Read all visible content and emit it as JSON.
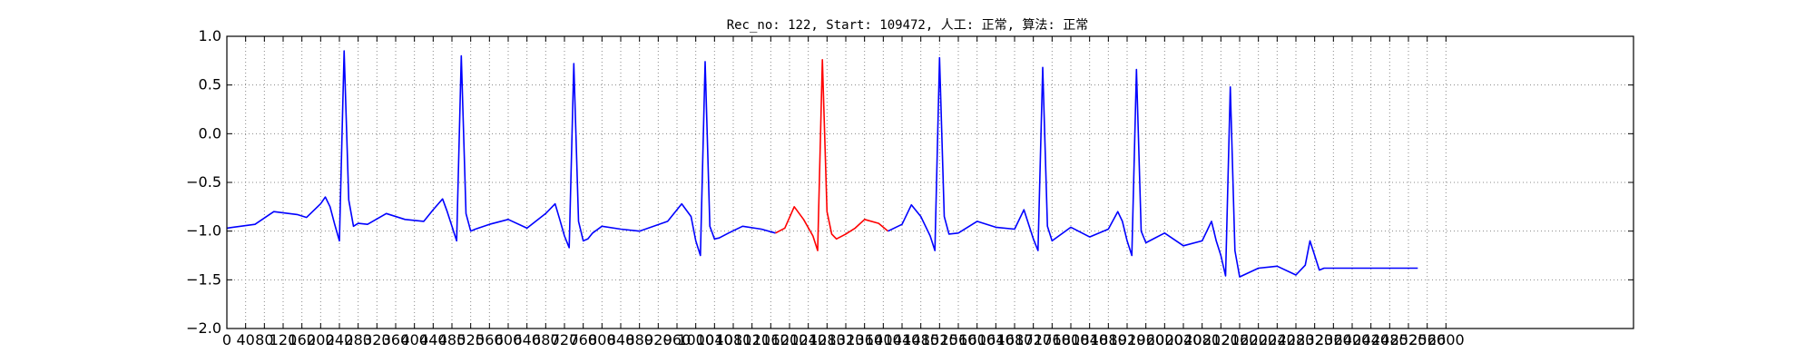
{
  "chart_data": {
    "type": "line",
    "title": "Rec_no: 122, Start: 109472, 人工: 正常, 算法: 正常",
    "xlabel": "",
    "ylabel": "",
    "xlim": [
      0,
      3000
    ],
    "ylim": [
      -2.0,
      1.0
    ],
    "grid": true,
    "grid_style": "dotted",
    "y_ticks": [
      1.0,
      0.5,
      0.0,
      -0.5,
      -1.0,
      -1.5,
      -2.0
    ],
    "y_tick_labels": [
      "1.0",
      "0.5",
      "0.0",
      "−0.5",
      "−1.0",
      "−1.5",
      "−2.0"
    ],
    "x_ticks": [
      0,
      40,
      80,
      120,
      160,
      200,
      240,
      280,
      320,
      360,
      400,
      440,
      480,
      520,
      560,
      600,
      640,
      680,
      720,
      760,
      800,
      840,
      880,
      920,
      960,
      1000,
      1040,
      1080,
      1120,
      1160,
      1200,
      1240,
      1280,
      1320,
      1360,
      1400,
      1440,
      1480,
      1520,
      1560,
      1600,
      1640,
      1680,
      1720,
      1760,
      1800,
      1840,
      1880,
      1920,
      1960,
      2000,
      2040,
      2080,
      2120,
      2160,
      2200,
      2240,
      2280,
      2320,
      2360,
      2400,
      2440,
      2480,
      2520,
      2560,
      2600
    ],
    "colors": {
      "signal": "#0000ff",
      "highlight": "#ff0000",
      "grid": "#888888"
    },
    "series": [
      {
        "color": "#0000ff",
        "x": [
          0,
          60,
          100,
          150,
          170,
          200,
          210,
          220,
          230,
          240,
          250,
          260,
          270,
          280,
          300,
          340,
          380,
          420,
          440,
          460,
          470,
          480,
          490,
          500,
          510,
          520,
          530,
          560,
          600,
          640,
          680,
          700,
          710,
          720,
          730,
          740,
          750,
          760,
          770,
          780,
          800,
          840,
          880,
          940,
          970,
          990,
          1000,
          1010,
          1020,
          1030,
          1040,
          1050,
          1070,
          1100,
          1140,
          1170
        ],
        "y": [
          -0.97,
          -0.93,
          -0.8,
          -0.83,
          -0.86,
          -0.72,
          -0.65,
          -0.75,
          -0.93,
          -1.1,
          0.85,
          -0.68,
          -0.95,
          -0.92,
          -0.93,
          -0.82,
          -0.88,
          -0.9,
          -0.78,
          -0.67,
          -0.8,
          -0.95,
          -1.1,
          0.8,
          -0.82,
          -1.0,
          -0.98,
          -0.93,
          -0.88,
          -0.97,
          -0.82,
          -0.72,
          -0.88,
          -1.05,
          -1.17,
          0.72,
          -0.9,
          -1.1,
          -1.08,
          -1.02,
          -0.95,
          -0.98,
          -1.0,
          -0.9,
          -0.72,
          -0.85,
          -1.1,
          -1.25,
          0.74,
          -0.95,
          -1.08,
          -1.07,
          -1.02,
          -0.95,
          -0.98,
          -1.02
        ]
      },
      {
        "color": "#ff0000",
        "x": [
          1170,
          1190,
          1210,
          1230,
          1250,
          1260,
          1270,
          1280,
          1290,
          1300,
          1320,
          1340,
          1360,
          1390,
          1410
        ],
        "y": [
          -1.02,
          -0.97,
          -0.75,
          -0.88,
          -1.05,
          -1.2,
          0.76,
          -0.8,
          -1.03,
          -1.08,
          -1.03,
          -0.97,
          -0.88,
          -0.92,
          -1.0
        ]
      },
      {
        "color": "#0000ff",
        "x": [
          1410,
          1440,
          1460,
          1480,
          1500,
          1510,
          1520,
          1530,
          1540,
          1560,
          1600,
          1640,
          1680,
          1700,
          1710,
          1720,
          1730,
          1740,
          1750,
          1760,
          1800,
          1840,
          1880,
          1900,
          1910,
          1920,
          1930,
          1940,
          1950,
          1960,
          2000,
          2040,
          2080,
          2100,
          2110,
          2120,
          2130,
          2140,
          2150,
          2160,
          2200,
          2240,
          2280,
          2300,
          2310,
          2320,
          2330,
          2340,
          2350,
          2360,
          2400,
          2440,
          2480,
          2500,
          2510,
          2520,
          2530,
          2540
        ],
        "y": [
          -1.0,
          -0.93,
          -0.73,
          -0.85,
          -1.05,
          -1.2,
          0.78,
          -0.85,
          -1.03,
          -1.02,
          -0.9,
          -0.96,
          -0.98,
          -0.78,
          -0.93,
          -1.08,
          -1.2,
          0.68,
          -0.95,
          -1.1,
          -0.96,
          -1.06,
          -0.98,
          -0.8,
          -0.9,
          -1.1,
          -1.25,
          0.66,
          -1.0,
          -1.12,
          -1.02,
          -1.15,
          -1.1,
          -0.9,
          -1.1,
          -1.25,
          -1.46,
          0.48,
          -1.2,
          -1.47,
          -1.38,
          -1.36,
          -1.45,
          -1.35,
          -1.1,
          -1.25,
          -1.4,
          -1.38,
          -1.38,
          -1.38,
          -1.38,
          -1.38,
          -1.38,
          -1.38,
          -1.38,
          -1.38,
          -1.38,
          -1.38
        ]
      }
    ]
  }
}
